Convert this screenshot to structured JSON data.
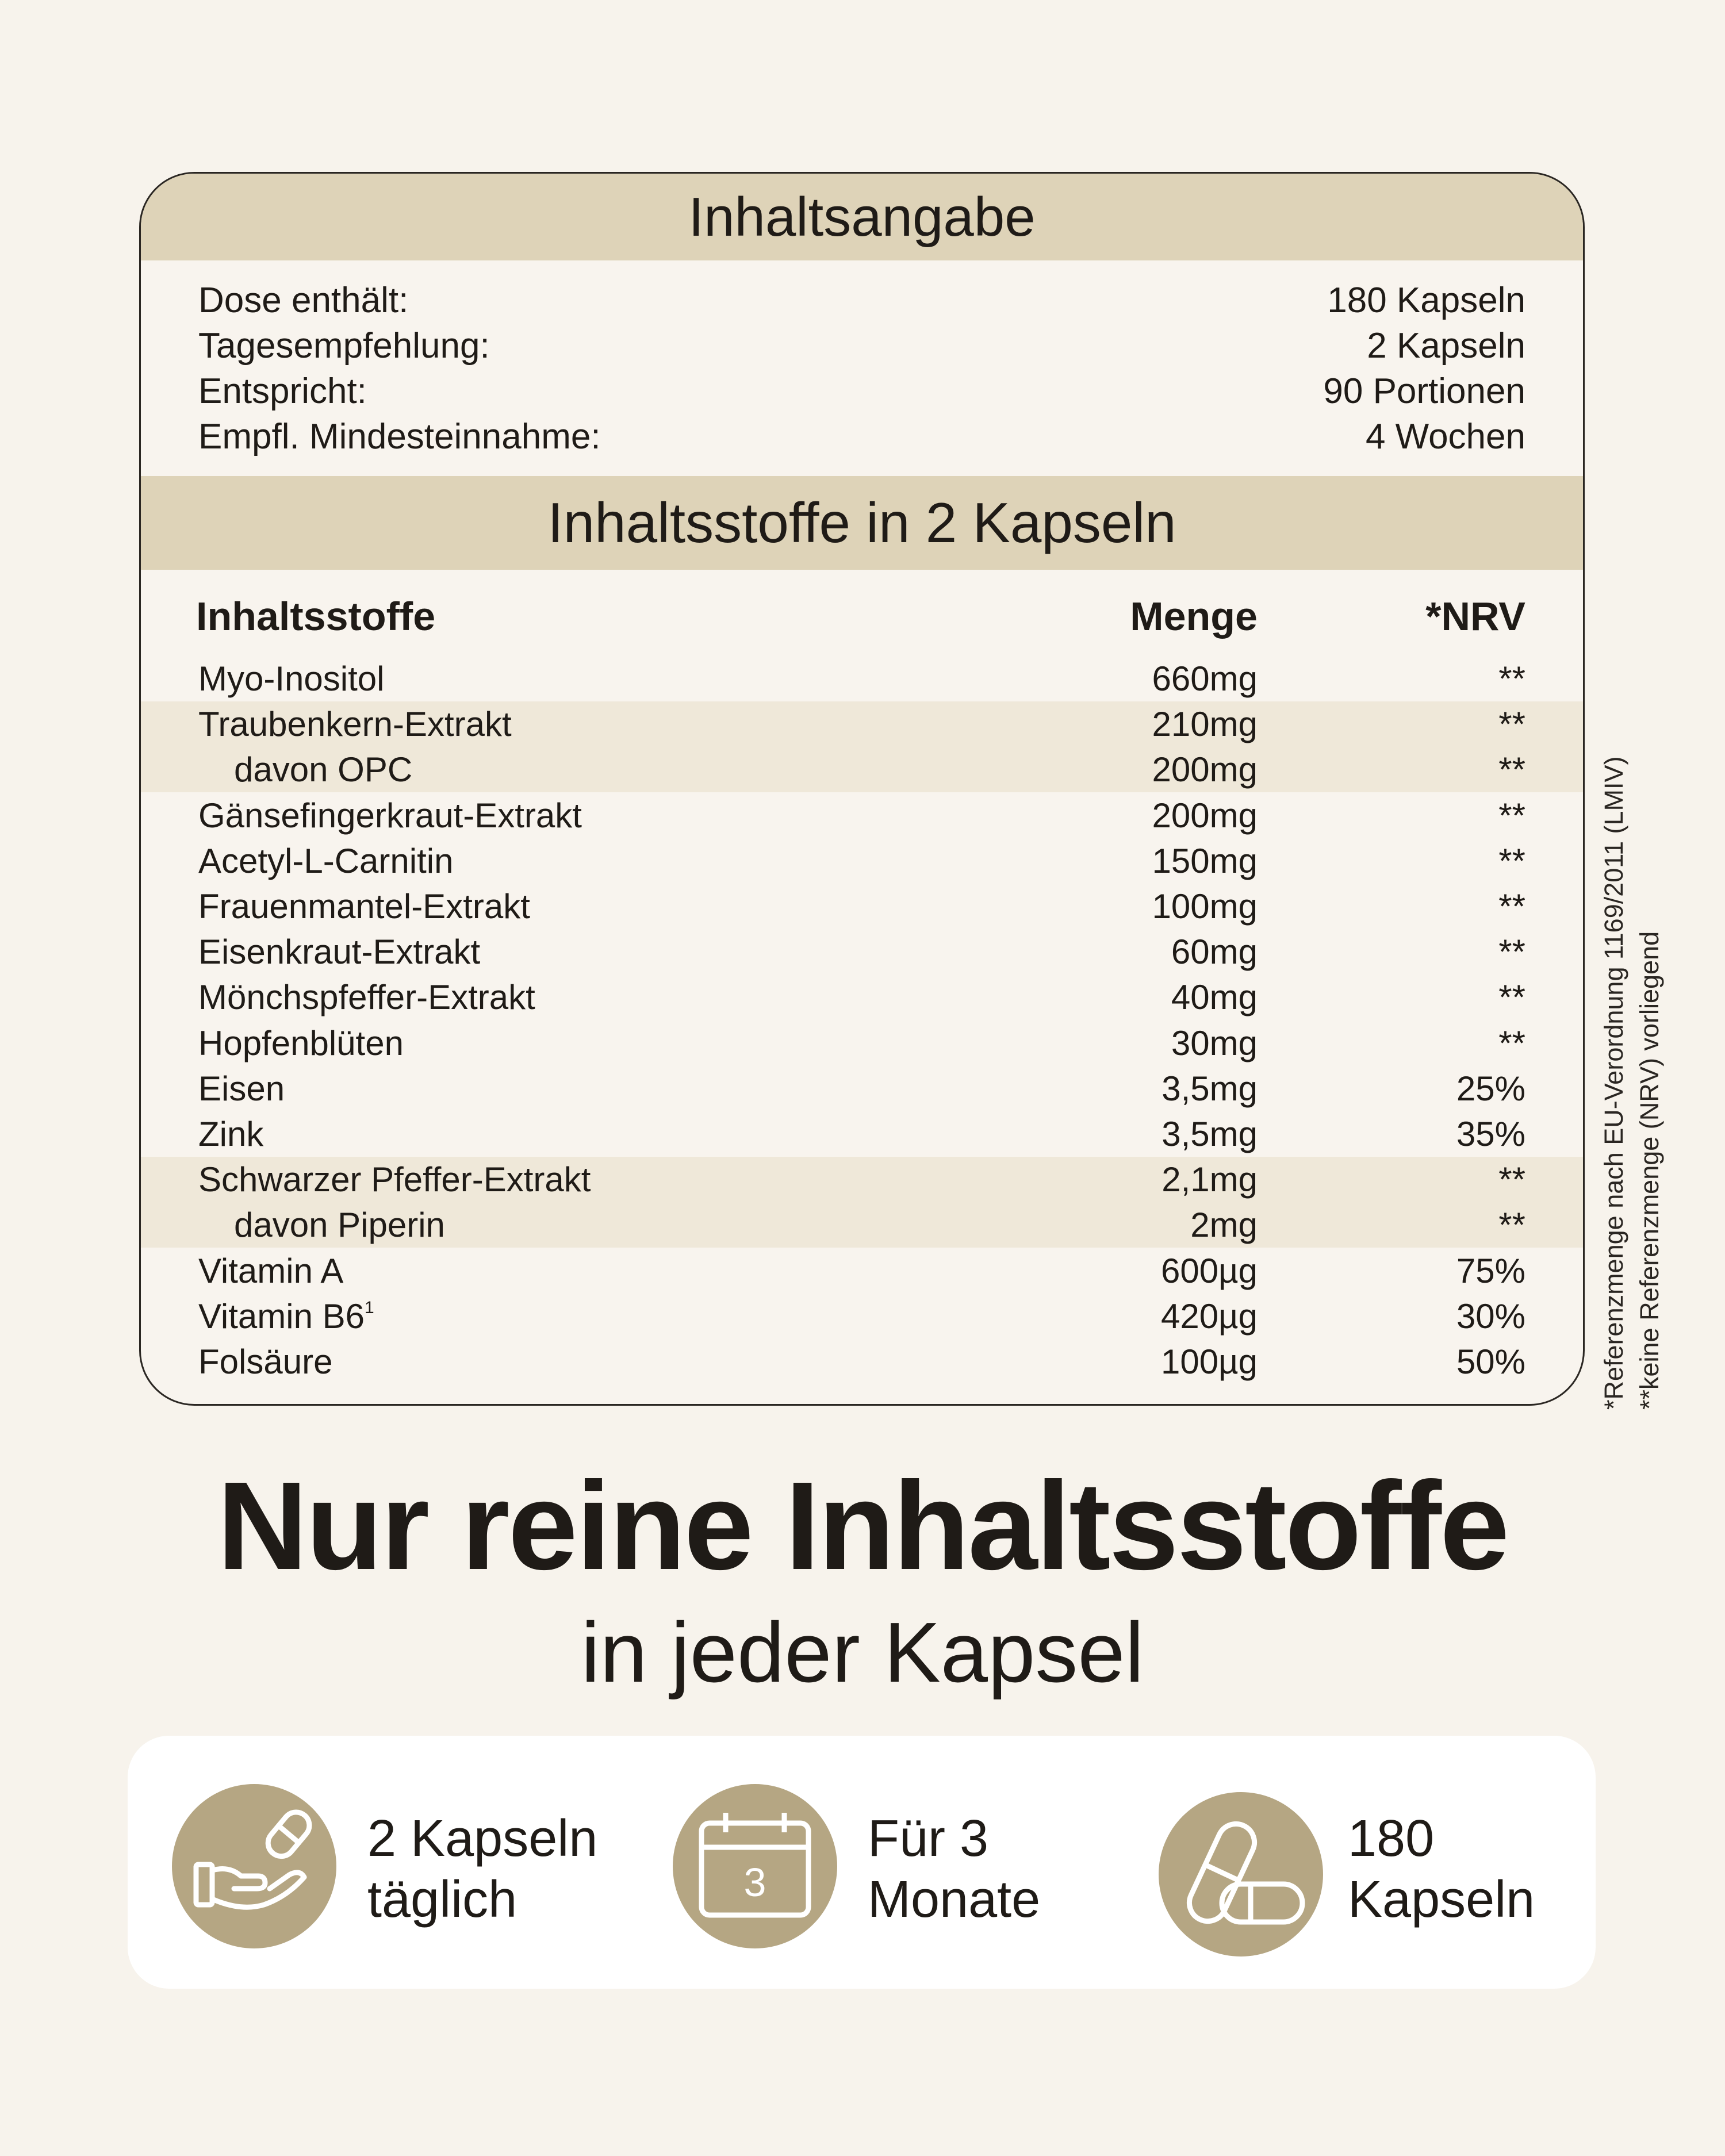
{
  "overview": {
    "title": "Inhaltsangabe",
    "rows": [
      {
        "label": "Dose enthält:",
        "value": "180 Kapseln"
      },
      {
        "label": "Tagesempfehlung:",
        "value": "2 Kapseln"
      },
      {
        "label": "Entspricht:",
        "value": "90 Portionen"
      },
      {
        "label": "Empfl. Mindesteinnahme:",
        "value": "4 Wochen"
      }
    ]
  },
  "ingredients": {
    "title": "Inhaltsstoffe in 2 Kapseln",
    "headers": {
      "name": "Inhaltsstoffe",
      "amount": "Menge",
      "nrv": "*NRV"
    },
    "rows": [
      {
        "name": "Myo-Inositol",
        "amount": "660mg",
        "nrv": "**"
      },
      {
        "name": "Traubenkern-Extrakt",
        "amount": "210mg",
        "nrv": "**"
      },
      {
        "name": "davon OPC",
        "amount": "200mg",
        "nrv": "**"
      },
      {
        "name": "Gänsefingerkraut-Extrakt",
        "amount": "200mg",
        "nrv": "**"
      },
      {
        "name": "Acetyl-L-Carnitin",
        "amount": "150mg",
        "nrv": "**"
      },
      {
        "name": "Frauenmantel-Extrakt",
        "amount": "100mg",
        "nrv": "**"
      },
      {
        "name": "Eisenkraut-Extrakt",
        "amount": "60mg",
        "nrv": "**"
      },
      {
        "name": "Mönchspfeffer-Extrakt",
        "amount": "40mg",
        "nrv": "**"
      },
      {
        "name": "Hopfenblüten",
        "amount": "30mg",
        "nrv": "**"
      },
      {
        "name": "Eisen",
        "amount": "3,5mg",
        "nrv": "25%"
      },
      {
        "name": "Zink",
        "amount": "3,5mg",
        "nrv": "35%"
      },
      {
        "name": "Schwarzer Pfeffer-Extrakt",
        "amount": "2,1mg",
        "nrv": "**"
      },
      {
        "name": "davon Piperin",
        "amount": "2mg",
        "nrv": "**"
      },
      {
        "name": "Vitamin A",
        "amount": "600µg",
        "nrv": "75%"
      },
      {
        "name": "Vitamin B6",
        "sup": "1",
        "amount": "420µg",
        "nrv": "30%"
      },
      {
        "name": "Folsäure",
        "amount": "100µg",
        "nrv": "50%"
      }
    ]
  },
  "footnotes": [
    "*Referenzmenge nach EU-Verordnung 1169/2011 (LMIV)",
    "**keine Referenzmenge (NRV) vorliegend"
  ],
  "headline": "Nur reine Inhaltsstoffe",
  "subline": "in jeder Kapsel",
  "features": [
    {
      "icon": "hand-capsule-icon",
      "line1": "2 Kapseln",
      "line2": "täglich"
    },
    {
      "icon": "calendar-icon",
      "calendar_number": "3",
      "line1": "Für 3",
      "line2": "Monate"
    },
    {
      "icon": "capsules-icon",
      "line1": "180",
      "line2": "Kapseln"
    }
  ],
  "colors": {
    "band": "#ded3b8",
    "shade": "#efe8d9",
    "accent": "#b5a683",
    "background": "#f7f3ec"
  }
}
